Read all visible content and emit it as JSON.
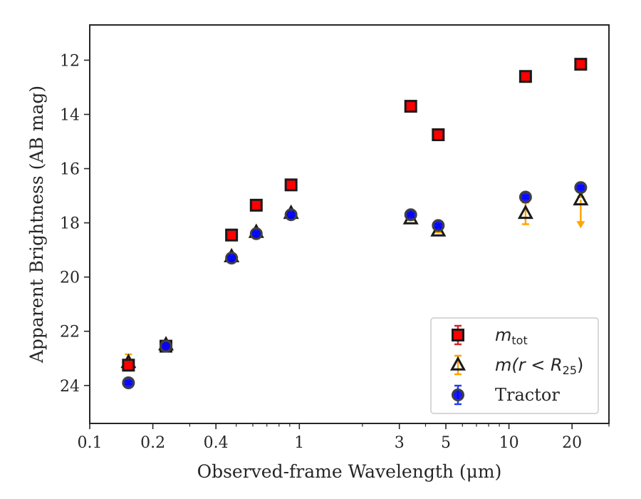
{
  "chart_data": {
    "type": "scatter",
    "title": "",
    "xlabel": "Observed-frame Wavelength (μm)",
    "ylabel": "Apparent Brightness (AB mag)",
    "xscale": "log",
    "xlim": [
      0.1,
      30
    ],
    "ylim": [
      25.4,
      10.7
    ],
    "y_inverted": true,
    "grid": false,
    "legend_position": "lower-right",
    "x_ticks": [
      0.1,
      0.2,
      0.4,
      1,
      3,
      5,
      10,
      20
    ],
    "x_tick_labels": [
      "0.1",
      "0.2",
      "0.4",
      "1",
      "3",
      "5",
      "10",
      "20"
    ],
    "y_ticks": [
      12,
      14,
      16,
      18,
      20,
      22,
      24
    ],
    "y_tick_labels": [
      "12",
      "14",
      "16",
      "18",
      "20",
      "22",
      "24"
    ],
    "series": [
      {
        "name": "m_tot",
        "legend_main": "m",
        "legend_sub": "tot",
        "marker": "square",
        "face_color": "#ff0000",
        "edge_color": "#1a1a1a",
        "err_color": "#d62728",
        "x": [
          0.153,
          0.231,
          0.475,
          0.623,
          0.913,
          3.4,
          4.6,
          12.0,
          22.0
        ],
        "y": [
          23.25,
          22.55,
          18.45,
          17.35,
          16.6,
          13.7,
          14.75,
          12.6,
          12.15
        ],
        "yerr": [
          0.15,
          0.1,
          0.05,
          0.05,
          0.05,
          0.05,
          0.05,
          0.05,
          0.05
        ]
      },
      {
        "name": "m(r < R25)",
        "legend_main": "m(r < R",
        "legend_sub": "25",
        "legend_end": ")",
        "marker": "triangle",
        "face_color": "#1a1a1a",
        "edge_color": "#1a1a1a",
        "err_color": "#ffa500",
        "x": [
          0.153,
          0.231,
          0.475,
          0.623,
          0.913,
          3.4,
          4.6,
          12.0,
          22.0
        ],
        "y": [
          23.15,
          22.5,
          19.25,
          18.35,
          17.65,
          17.85,
          18.3,
          17.65,
          17.15
        ],
        "yerr": [
          0.3,
          0.1,
          0.05,
          0.05,
          0.05,
          0.05,
          0.05,
          0.4,
          0.1
        ],
        "upper_limit_index": 8
      },
      {
        "name": "Tractor",
        "legend_main": "Tractor",
        "marker": "circle",
        "face_color": "#0000ff",
        "edge_color": "#404040",
        "err_color": "#1f3fff",
        "x": [
          0.153,
          0.231,
          0.475,
          0.623,
          0.913,
          3.4,
          4.6,
          12.0,
          22.0
        ],
        "y": [
          23.9,
          22.55,
          19.3,
          18.4,
          17.7,
          17.7,
          18.1,
          17.05,
          16.7
        ],
        "yerr": [
          0.05,
          0.05,
          0.05,
          0.05,
          0.05,
          0.05,
          0.05,
          0.05,
          0.05
        ]
      }
    ]
  }
}
